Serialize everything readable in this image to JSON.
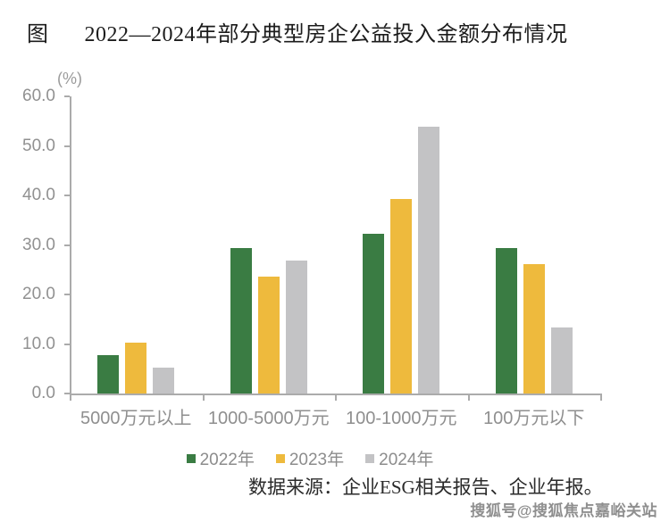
{
  "title": {
    "prefix": "图",
    "text": "2022—2024年部分典型房企公益投入金额分布情况"
  },
  "chart_data": {
    "type": "bar",
    "title": "2022—2024年部分典型房企公益投入金额分布情况",
    "unit_label": "(%)",
    "xlabel": "",
    "ylabel": "%",
    "categories": [
      "5000万元以上",
      "1000-5000万元",
      "100-1000万元",
      "100万元以下"
    ],
    "series": [
      {
        "name": "2022年",
        "color": "#3a7c43",
        "values": [
          7.8,
          29.4,
          32.3,
          29.4
        ]
      },
      {
        "name": "2023年",
        "color": "#eeba3d",
        "values": [
          10.3,
          23.6,
          39.3,
          26.2
        ]
      },
      {
        "name": "2024年",
        "color": "#c3c3c5",
        "values": [
          5.3,
          26.9,
          53.9,
          13.3
        ]
      }
    ],
    "ylim": [
      0,
      60
    ],
    "ytick_step": 10,
    "ytick_labels": [
      "0.0",
      "10.0",
      "20.0",
      "30.0",
      "40.0",
      "50.0",
      "60.0"
    ],
    "grid": false,
    "legend_position": "bottom"
  },
  "colors": {
    "axis": "#ababab",
    "tick_label": "#919191",
    "category_label": "#8f8f8f",
    "legend_text": "#8c8c8c"
  },
  "source_note": "数据来源：企业ESG相关报告、企业年报。",
  "watermark": "搜狐号@搜狐焦点嘉峪关站"
}
